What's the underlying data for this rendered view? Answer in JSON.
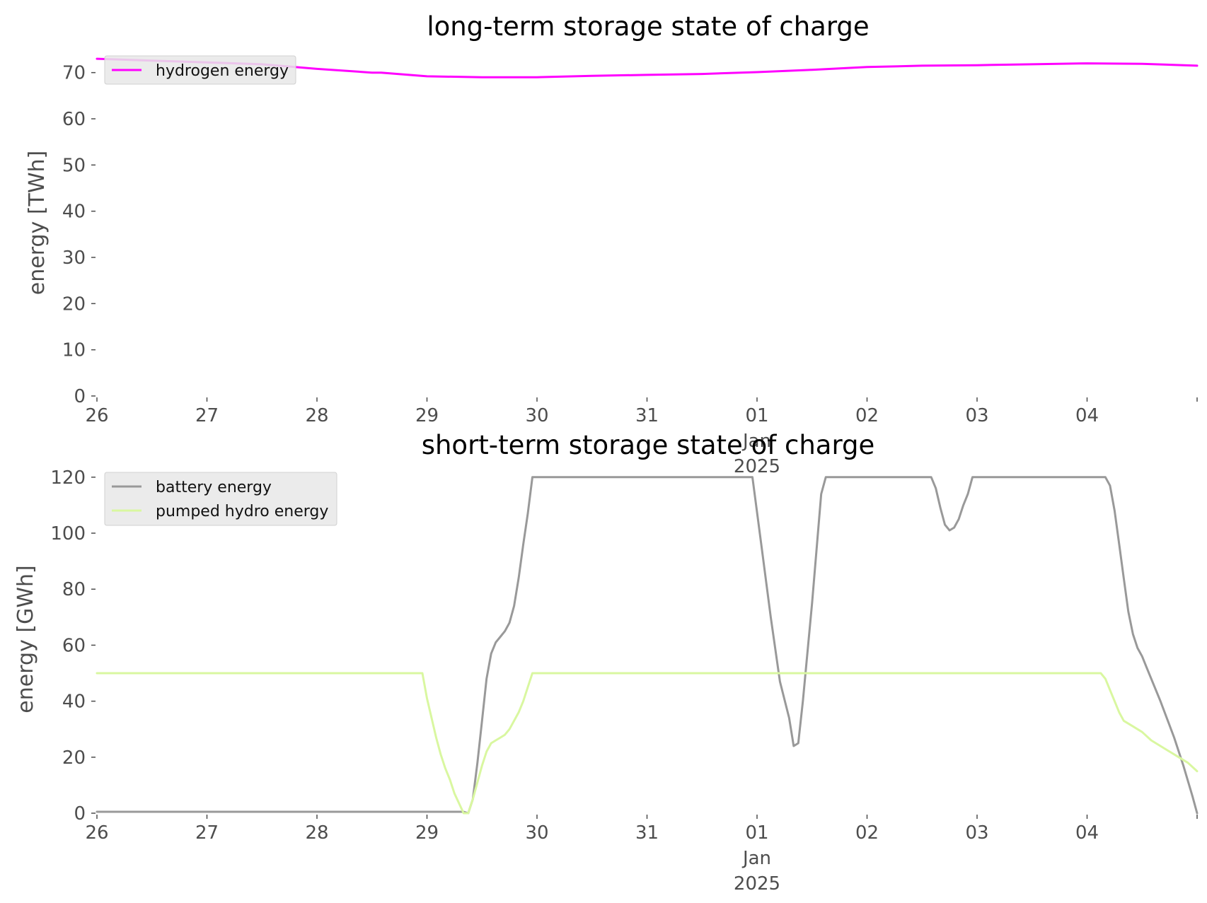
{
  "chart_data": [
    {
      "type": "line",
      "title": "long-term storage state of charge",
      "xlabel": "",
      "ylabel": "energy [TWh]",
      "x_ticks": [
        {
          "x": "2024-12-26",
          "label": "26"
        },
        {
          "x": "2024-12-27",
          "label": "27"
        },
        {
          "x": "2024-12-28",
          "label": "28"
        },
        {
          "x": "2024-12-29",
          "label": "29"
        },
        {
          "x": "2024-12-30",
          "label": "30"
        },
        {
          "x": "2024-12-31",
          "label": "31"
        },
        {
          "x": "2025-01-01",
          "label": "01\nJan\n2025"
        },
        {
          "x": "2025-01-02",
          "label": "02"
        },
        {
          "x": "2025-01-03",
          "label": "03"
        },
        {
          "x": "2025-01-04",
          "label": "04"
        },
        {
          "x": "2025-01-05",
          "label": ""
        }
      ],
      "xlim": [
        "2024-12-26",
        "2025-01-05"
      ],
      "ylim": [
        0,
        75
      ],
      "yticks": [
        0,
        10,
        20,
        30,
        40,
        50,
        60,
        70
      ],
      "grid": false,
      "legend_position": "upper-left",
      "series": [
        {
          "name": "hydrogen energy",
          "color": "#ff00ff",
          "points": [
            [
              "2024-12-26 00:00",
              73.0
            ],
            [
              "2024-12-26 12:00",
              72.6
            ],
            [
              "2024-12-27 00:00",
              72.2
            ],
            [
              "2024-12-27 12:00",
              71.8
            ],
            [
              "2024-12-28 00:00",
              70.8
            ],
            [
              "2024-12-28 12:00",
              70.0
            ],
            [
              "2024-12-28 14:00",
              70.0
            ],
            [
              "2024-12-29 00:00",
              69.2
            ],
            [
              "2024-12-29 12:00",
              69.0
            ],
            [
              "2024-12-30 00:00",
              69.0
            ],
            [
              "2024-12-30 12:00",
              69.3
            ],
            [
              "2024-12-31 00:00",
              69.5
            ],
            [
              "2024-12-31 12:00",
              69.7
            ],
            [
              "2025-01-01 00:00",
              70.1
            ],
            [
              "2025-01-01 12:00",
              70.6
            ],
            [
              "2025-01-02 00:00",
              71.2
            ],
            [
              "2025-01-02 12:00",
              71.5
            ],
            [
              "2025-01-03 00:00",
              71.6
            ],
            [
              "2025-01-03 12:00",
              71.8
            ],
            [
              "2025-01-04 00:00",
              72.0
            ],
            [
              "2025-01-04 12:00",
              71.9
            ],
            [
              "2025-01-05 00:00",
              71.5
            ]
          ]
        }
      ]
    },
    {
      "type": "line",
      "title": "short-term storage state of charge",
      "xlabel": "",
      "ylabel": "energy [GWh]",
      "x_ticks": [
        {
          "x": "2024-12-26",
          "label": "26"
        },
        {
          "x": "2024-12-27",
          "label": "27"
        },
        {
          "x": "2024-12-28",
          "label": "28"
        },
        {
          "x": "2024-12-29",
          "label": "29"
        },
        {
          "x": "2024-12-30",
          "label": "30"
        },
        {
          "x": "2024-12-31",
          "label": "31"
        },
        {
          "x": "2025-01-01",
          "label": "01\nJan\n2025"
        },
        {
          "x": "2025-01-02",
          "label": "02"
        },
        {
          "x": "2025-01-03",
          "label": "03"
        },
        {
          "x": "2025-01-04",
          "label": "04"
        },
        {
          "x": "2025-01-05",
          "label": ""
        }
      ],
      "xlim": [
        "2024-12-26",
        "2025-01-05"
      ],
      "ylim": [
        0,
        125
      ],
      "yticks": [
        0,
        20,
        40,
        60,
        80,
        100,
        120
      ],
      "grid": false,
      "legend_position": "upper-left",
      "series": [
        {
          "name": "battery energy",
          "color": "#999999",
          "points": [
            [
              "2024-12-26 00:00",
              0.5
            ],
            [
              "2024-12-29 08:00",
              0.5
            ],
            [
              "2024-12-29 09:00",
              0.0
            ],
            [
              "2024-12-29 10:00",
              5
            ],
            [
              "2024-12-29 11:00",
              18
            ],
            [
              "2024-12-29 12:00",
              33
            ],
            [
              "2024-12-29 13:00",
              48
            ],
            [
              "2024-12-29 14:00",
              57
            ],
            [
              "2024-12-29 15:00",
              61
            ],
            [
              "2024-12-29 16:00",
              63
            ],
            [
              "2024-12-29 17:00",
              65
            ],
            [
              "2024-12-29 18:00",
              68
            ],
            [
              "2024-12-29 19:00",
              74
            ],
            [
              "2024-12-29 20:00",
              84
            ],
            [
              "2024-12-29 21:00",
              96
            ],
            [
              "2024-12-29 22:00",
              107
            ],
            [
              "2024-12-29 23:00",
              120
            ],
            [
              "2024-12-31 23:00",
              120
            ],
            [
              "2025-01-01 01:00",
              95
            ],
            [
              "2025-01-01 03:00",
              70
            ],
            [
              "2025-01-01 05:00",
              47
            ],
            [
              "2025-01-01 07:00",
              34
            ],
            [
              "2025-01-01 08:00",
              24
            ],
            [
              "2025-01-01 09:00",
              25
            ],
            [
              "2025-01-01 10:00",
              40
            ],
            [
              "2025-01-01 12:00",
              75
            ],
            [
              "2025-01-01 14:00",
              114
            ],
            [
              "2025-01-01 15:00",
              120
            ],
            [
              "2025-01-02 14:00",
              120
            ],
            [
              "2025-01-02 15:00",
              116
            ],
            [
              "2025-01-02 16:00",
              109
            ],
            [
              "2025-01-02 17:00",
              103
            ],
            [
              "2025-01-02 18:00",
              101
            ],
            [
              "2025-01-02 19:00",
              102
            ],
            [
              "2025-01-02 20:00",
              105
            ],
            [
              "2025-01-02 21:00",
              110
            ],
            [
              "2025-01-02 22:00",
              114
            ],
            [
              "2025-01-02 23:00",
              120
            ],
            [
              "2025-01-04 04:00",
              120
            ],
            [
              "2025-01-04 05:00",
              117
            ],
            [
              "2025-01-04 06:00",
              108
            ],
            [
              "2025-01-04 07:00",
              96
            ],
            [
              "2025-01-04 08:00",
              84
            ],
            [
              "2025-01-04 09:00",
              72
            ],
            [
              "2025-01-04 10:00",
              64
            ],
            [
              "2025-01-04 11:00",
              59
            ],
            [
              "2025-01-04 12:00",
              56
            ],
            [
              "2025-01-04 13:00",
              52
            ],
            [
              "2025-01-04 16:00",
              40
            ],
            [
              "2025-01-04 19:00",
              27
            ],
            [
              "2025-01-04 21:00",
              17
            ],
            [
              "2025-01-04 23:00",
              6
            ],
            [
              "2025-01-05 00:00",
              0
            ]
          ]
        },
        {
          "name": "pumped hydro energy",
          "color": "#d9f7a0",
          "points": [
            [
              "2024-12-26 00:00",
              50
            ],
            [
              "2024-12-28 23:00",
              50
            ],
            [
              "2024-12-29 00:00",
              41
            ],
            [
              "2024-12-29 01:00",
              34
            ],
            [
              "2024-12-29 02:00",
              27
            ],
            [
              "2024-12-29 03:00",
              21
            ],
            [
              "2024-12-29 04:00",
              16
            ],
            [
              "2024-12-29 05:00",
              12
            ],
            [
              "2024-12-29 06:00",
              7
            ],
            [
              "2024-12-29 08:00",
              0
            ],
            [
              "2024-12-29 09:00",
              0
            ],
            [
              "2024-12-29 10:00",
              5
            ],
            [
              "2024-12-29 11:00",
              11
            ],
            [
              "2024-12-29 12:00",
              17
            ],
            [
              "2024-12-29 13:00",
              22
            ],
            [
              "2024-12-29 14:00",
              25
            ],
            [
              "2024-12-29 15:00",
              26
            ],
            [
              "2024-12-29 16:00",
              27
            ],
            [
              "2024-12-29 17:00",
              28
            ],
            [
              "2024-12-29 18:00",
              30
            ],
            [
              "2024-12-29 19:00",
              33
            ],
            [
              "2024-12-29 20:00",
              36
            ],
            [
              "2024-12-29 21:00",
              40
            ],
            [
              "2024-12-29 22:00",
              45
            ],
            [
              "2024-12-29 23:00",
              50
            ],
            [
              "2025-01-04 03:00",
              50
            ],
            [
              "2025-01-04 04:00",
              48
            ],
            [
              "2025-01-04 05:00",
              44
            ],
            [
              "2025-01-04 06:00",
              40
            ],
            [
              "2025-01-04 07:00",
              36
            ],
            [
              "2025-01-04 08:00",
              33
            ],
            [
              "2025-01-04 10:00",
              31
            ],
            [
              "2025-01-04 12:00",
              29
            ],
            [
              "2025-01-04 14:00",
              26
            ],
            [
              "2025-01-04 16:00",
              24
            ],
            [
              "2025-01-04 18:00",
              22
            ],
            [
              "2025-01-04 20:00",
              20
            ],
            [
              "2025-01-04 22:00",
              18
            ],
            [
              "2025-01-05 00:00",
              15
            ]
          ]
        }
      ]
    }
  ]
}
